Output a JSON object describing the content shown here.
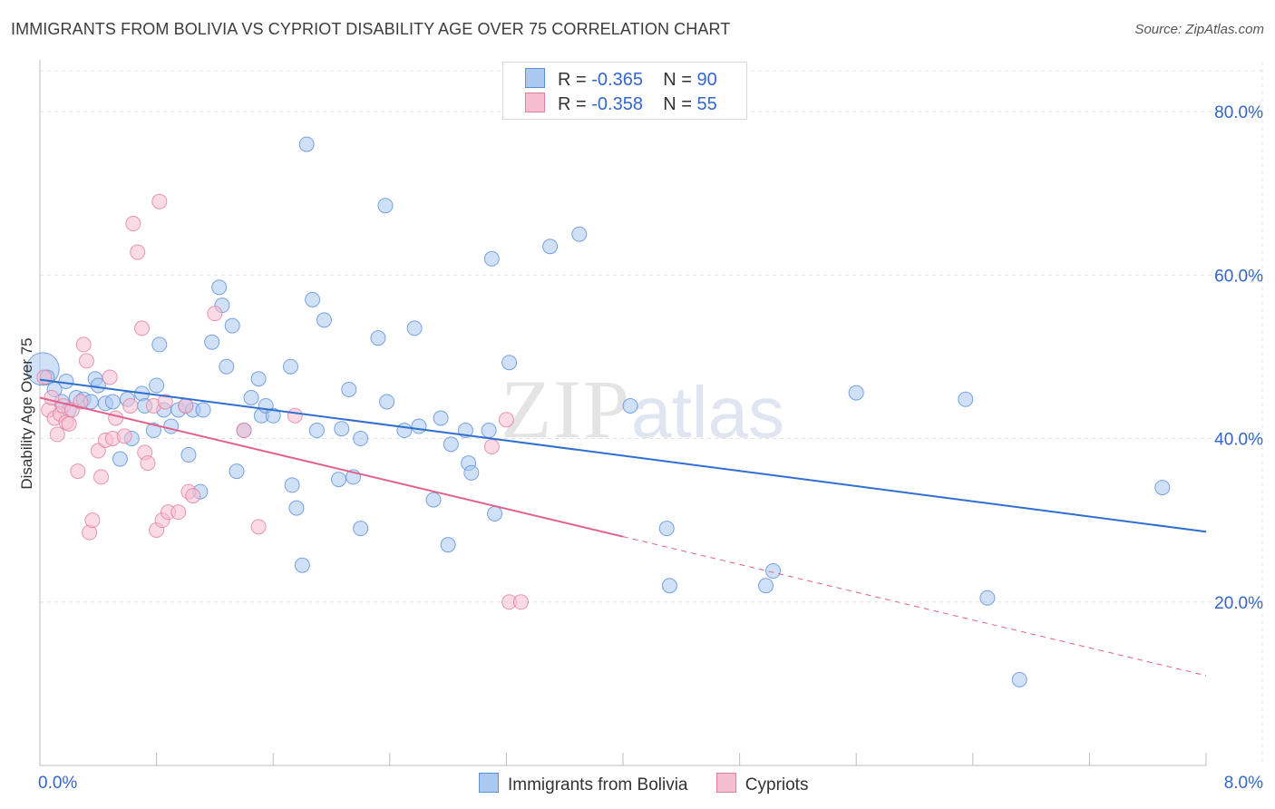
{
  "title": "IMMIGRANTS FROM BOLIVIA VS CYPRIOT DISABILITY AGE OVER 75 CORRELATION CHART",
  "source": "Source: ZipAtlas.com",
  "watermark": {
    "zip": "ZIP",
    "atlas": "atlas"
  },
  "legend": {
    "r_label": "R =",
    "n_label": "N =",
    "rows": [
      {
        "r": "-0.365",
        "n": "90"
      },
      {
        "r": "-0.358",
        "n": "55"
      }
    ]
  },
  "colors": {
    "bolivia_fill": "#aac8f0",
    "bolivia_stroke": "#5b8fd8",
    "bolivia_line": "#2f6fd0",
    "cypriot_fill": "#f6bdd0",
    "cypriot_stroke": "#e47ea0",
    "cypriot_line": "#e0608a",
    "axis_text": "#3366cc",
    "grid": "#e2e2e2"
  },
  "chart_data": {
    "type": "scatter",
    "xlabel": "",
    "ylabel": "Disability Age Over 75",
    "xlim": [
      0,
      8
    ],
    "ylim": [
      0,
      85
    ],
    "x_tick_labels": [
      "0.0%",
      "8.0%"
    ],
    "y_tick_labels": [
      "20.0%",
      "40.0%",
      "60.0%",
      "80.0%"
    ],
    "y_ticks": [
      20,
      40,
      60,
      80
    ],
    "grid": true,
    "legend_placement": "bottom",
    "series": [
      {
        "name": "Immigrants from Bolivia",
        "r": -0.365,
        "n": 90,
        "trend": {
          "x": [
            0,
            8
          ],
          "y": [
            47.2,
            28.6
          ],
          "solid_until": 8
        },
        "points": [
          [
            0.02,
            48.5
          ],
          [
            0.05,
            47.5
          ],
          [
            0.1,
            46.0
          ],
          [
            0.15,
            44.5
          ],
          [
            0.18,
            47.0
          ],
          [
            0.2,
            43.5
          ],
          [
            0.25,
            45.0
          ],
          [
            0.3,
            44.8
          ],
          [
            0.35,
            44.5
          ],
          [
            0.38,
            47.3
          ],
          [
            0.4,
            46.5
          ],
          [
            0.45,
            44.3
          ],
          [
            0.5,
            44.5
          ],
          [
            0.55,
            37.5
          ],
          [
            0.6,
            44.8
          ],
          [
            0.63,
            40.0
          ],
          [
            0.7,
            45.5
          ],
          [
            0.72,
            44.0
          ],
          [
            0.78,
            41.0
          ],
          [
            0.8,
            46.5
          ],
          [
            0.82,
            51.5
          ],
          [
            0.85,
            43.5
          ],
          [
            0.9,
            41.5
          ],
          [
            0.95,
            43.5
          ],
          [
            1.0,
            44.0
          ],
          [
            1.02,
            38.0
          ],
          [
            1.05,
            43.5
          ],
          [
            1.1,
            33.5
          ],
          [
            1.12,
            43.5
          ],
          [
            1.18,
            51.8
          ],
          [
            1.23,
            58.5
          ],
          [
            1.25,
            56.3
          ],
          [
            1.28,
            48.8
          ],
          [
            1.32,
            53.8
          ],
          [
            1.35,
            36.0
          ],
          [
            1.4,
            41.0
          ],
          [
            1.45,
            45.0
          ],
          [
            1.5,
            47.3
          ],
          [
            1.52,
            42.8
          ],
          [
            1.55,
            44.0
          ],
          [
            1.6,
            42.8
          ],
          [
            1.72,
            48.8
          ],
          [
            1.73,
            34.3
          ],
          [
            1.76,
            31.5
          ],
          [
            1.8,
            24.5
          ],
          [
            1.83,
            76.0
          ],
          [
            1.87,
            57.0
          ],
          [
            1.9,
            41.0
          ],
          [
            1.95,
            54.5
          ],
          [
            2.05,
            35.0
          ],
          [
            2.07,
            41.2
          ],
          [
            2.12,
            46.0
          ],
          [
            2.15,
            35.3
          ],
          [
            2.2,
            40.0
          ],
          [
            2.2,
            29.0
          ],
          [
            2.32,
            52.3
          ],
          [
            2.37,
            68.5
          ],
          [
            2.38,
            44.5
          ],
          [
            2.5,
            41.0
          ],
          [
            2.57,
            53.5
          ],
          [
            2.6,
            41.5
          ],
          [
            2.7,
            32.5
          ],
          [
            2.75,
            42.5
          ],
          [
            2.8,
            27.0
          ],
          [
            2.82,
            39.3
          ],
          [
            2.92,
            41.0
          ],
          [
            2.94,
            37.0
          ],
          [
            2.96,
            35.8
          ],
          [
            3.08,
            41.0
          ],
          [
            3.1,
            62.0
          ],
          [
            3.12,
            30.8
          ],
          [
            3.22,
            49.3
          ],
          [
            3.5,
            63.5
          ],
          [
            3.7,
            65.0
          ],
          [
            4.05,
            44.0
          ],
          [
            4.3,
            29.0
          ],
          [
            4.32,
            22.0
          ],
          [
            4.98,
            22.0
          ],
          [
            5.03,
            23.8
          ],
          [
            5.6,
            45.6
          ],
          [
            6.35,
            44.8
          ],
          [
            6.5,
            20.5
          ],
          [
            6.72,
            10.5
          ],
          [
            7.7,
            34.0
          ]
        ]
      },
      {
        "name": "Cypriots",
        "r": -0.358,
        "n": 55,
        "trend": {
          "x": [
            0,
            8
          ],
          "y": [
            45.0,
            11.0
          ],
          "solid_until": 4.0
        },
        "points": [
          [
            0.03,
            47.5
          ],
          [
            0.06,
            43.5
          ],
          [
            0.08,
            45.0
          ],
          [
            0.1,
            42.5
          ],
          [
            0.12,
            40.5
          ],
          [
            0.14,
            43.0
          ],
          [
            0.16,
            44.0
          ],
          [
            0.18,
            42.0
          ],
          [
            0.2,
            41.8
          ],
          [
            0.22,
            43.5
          ],
          [
            0.26,
            36.0
          ],
          [
            0.28,
            44.5
          ],
          [
            0.3,
            51.5
          ],
          [
            0.32,
            49.5
          ],
          [
            0.34,
            28.5
          ],
          [
            0.36,
            30.0
          ],
          [
            0.4,
            38.5
          ],
          [
            0.42,
            35.3
          ],
          [
            0.45,
            39.8
          ],
          [
            0.48,
            47.5
          ],
          [
            0.5,
            40.0
          ],
          [
            0.52,
            42.5
          ],
          [
            0.58,
            40.3
          ],
          [
            0.62,
            44.0
          ],
          [
            0.64,
            66.3
          ],
          [
            0.67,
            62.8
          ],
          [
            0.7,
            53.5
          ],
          [
            0.72,
            38.3
          ],
          [
            0.74,
            37.0
          ],
          [
            0.78,
            44.0
          ],
          [
            0.8,
            28.8
          ],
          [
            0.82,
            69.0
          ],
          [
            0.84,
            30.0
          ],
          [
            0.86,
            44.5
          ],
          [
            0.88,
            31.0
          ],
          [
            0.95,
            31.0
          ],
          [
            1.0,
            44.0
          ],
          [
            1.02,
            33.5
          ],
          [
            1.05,
            33.0
          ],
          [
            1.2,
            55.3
          ],
          [
            1.4,
            41.0
          ],
          [
            1.5,
            29.2
          ],
          [
            1.75,
            42.8
          ],
          [
            3.1,
            39.0
          ],
          [
            3.2,
            42.3
          ],
          [
            3.22,
            20.0
          ],
          [
            3.3,
            20.0
          ]
        ]
      }
    ]
  }
}
